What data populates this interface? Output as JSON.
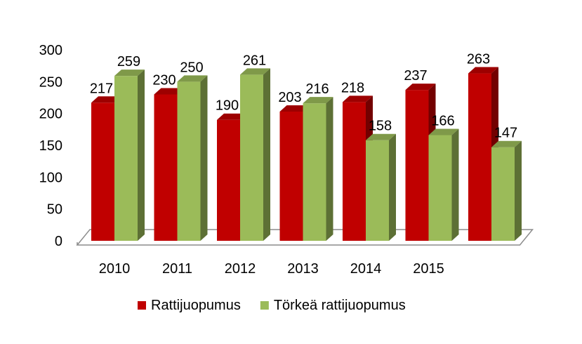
{
  "chart_data": {
    "type": "bar",
    "title": "",
    "xlabel": "",
    "ylabel": "",
    "categories": [
      "2010",
      "2011",
      "2012",
      "2013",
      "2014",
      "2015",
      ""
    ],
    "series": [
      {
        "name": "Rattijuopumus",
        "color": "#c00000",
        "values": [
          217,
          230,
          190,
          203,
          218,
          237,
          263
        ]
      },
      {
        "name": "Törkeä rattijuopumus",
        "color": "#9bbb59",
        "values": [
          259,
          250,
          261,
          216,
          158,
          166,
          147
        ]
      }
    ],
    "yticks": [
      "0",
      "50",
      "100",
      "150",
      "200",
      "250",
      "300"
    ],
    "ylim": [
      0,
      300
    ],
    "grid": false,
    "legend": "bottom",
    "three_d": true
  }
}
